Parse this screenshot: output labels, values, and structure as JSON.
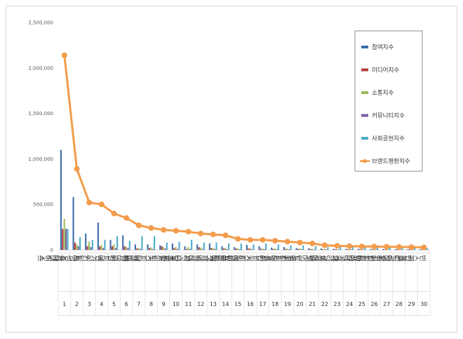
{
  "chart_data": {
    "type": "bar",
    "title": "",
    "xlabel": "",
    "ylabel": "",
    "ylim": [
      0,
      2500000
    ],
    "yticks": [
      "2,500,000",
      "2,000,000",
      "1,500,000",
      "1,000,000",
      "500,000",
      "0"
    ],
    "yticks_values": [
      2500000,
      2000000,
      1500000,
      1000000,
      500000,
      0
    ],
    "grid": false,
    "legend_position": "right",
    "categories": [
      "스타벅스",
      "투썸플레이스",
      "이디야",
      "메가커피",
      "커피빈",
      "빽다방",
      "탐앤탐스",
      "커피베이",
      "할리스",
      "달콤커피",
      "파스쿠찌",
      "엔제리너스",
      "카페베네",
      "폴바셋",
      "커피나무",
      "커피에반하다",
      "커피스미스",
      "드롭탑",
      "커피명가",
      "만랩커피",
      "매머드커피",
      "셀렉토",
      "그라찌에",
      "더카페",
      "토프레소",
      "커피마마",
      "더착한커피",
      "전광수커피",
      "카페띠아모",
      "빈스빈스"
    ],
    "ranks": [
      "1",
      "2",
      "3",
      "4",
      "5",
      "6",
      "7",
      "8",
      "9",
      "10",
      "11",
      "12",
      "13",
      "14",
      "15",
      "16",
      "17",
      "18",
      "19",
      "20",
      "21",
      "22",
      "23",
      "24",
      "25",
      "26",
      "27",
      "28",
      "29",
      "30"
    ],
    "series": [
      {
        "name": "참여지수",
        "kind": "bar",
        "color": "#3e6bad",
        "values": [
          1100000,
          580000,
          180000,
          300000,
          110000,
          160000,
          60000,
          60000,
          50000,
          70000,
          40000,
          60000,
          70000,
          40000,
          30000,
          55000,
          40000,
          25000,
          30000,
          20000,
          18000,
          15000,
          12000,
          10000,
          12000,
          10000,
          10000,
          9000,
          8000,
          10000
        ]
      },
      {
        "name": "미디어지수",
        "kind": "bar",
        "color": "#b23b3b",
        "values": [
          230000,
          80000,
          40000,
          40000,
          40000,
          40000,
          15000,
          20000,
          40000,
          20000,
          10000,
          30000,
          20000,
          15000,
          15000,
          15000,
          12000,
          10000,
          10000,
          10000,
          8000,
          7000,
          6000,
          6000,
          6000,
          5000,
          5000,
          5000,
          5000,
          5000
        ]
      },
      {
        "name": "소통지수",
        "kind": "bar",
        "color": "#9bbb59",
        "values": [
          340000,
          60000,
          90000,
          50000,
          60000,
          30000,
          20000,
          25000,
          30000,
          30000,
          30000,
          25000,
          20000,
          20000,
          15000,
          20000,
          15000,
          15000,
          15000,
          15000,
          12000,
          10000,
          10000,
          10000,
          8000,
          8000,
          8000,
          8000,
          8000,
          8000
        ]
      },
      {
        "name": "커뮤니티지수",
        "kind": "bar",
        "color": "#7a5ea5",
        "values": [
          230000,
          40000,
          30000,
          20000,
          20000,
          20000,
          10000,
          10000,
          15000,
          10000,
          10000,
          10000,
          10000,
          8000,
          8000,
          8000,
          8000,
          8000,
          6000,
          6000,
          5000,
          5000,
          5000,
          4000,
          4000,
          4000,
          4000,
          4000,
          4000,
          4000
        ]
      },
      {
        "name": "사회공헌지수",
        "kind": "bar",
        "color": "#4bacc6",
        "values": [
          230000,
          140000,
          110000,
          110000,
          150000,
          100000,
          150000,
          150000,
          80000,
          90000,
          110000,
          80000,
          80000,
          70000,
          70000,
          60000,
          70000,
          60000,
          50000,
          50000,
          40000,
          30000,
          40000,
          35000,
          30000,
          30000,
          25000,
          20000,
          20000,
          20000
        ]
      },
      {
        "name": "브랜드평판지수",
        "kind": "line",
        "color": "#f39c4b",
        "values": [
          2140000,
          890000,
          520000,
          500000,
          400000,
          350000,
          270000,
          240000,
          220000,
          210000,
          200000,
          180000,
          170000,
          160000,
          120000,
          110000,
          110000,
          100000,
          90000,
          80000,
          70000,
          50000,
          45000,
          40000,
          38000,
          36000,
          35000,
          32000,
          30000,
          28000
        ]
      }
    ]
  }
}
